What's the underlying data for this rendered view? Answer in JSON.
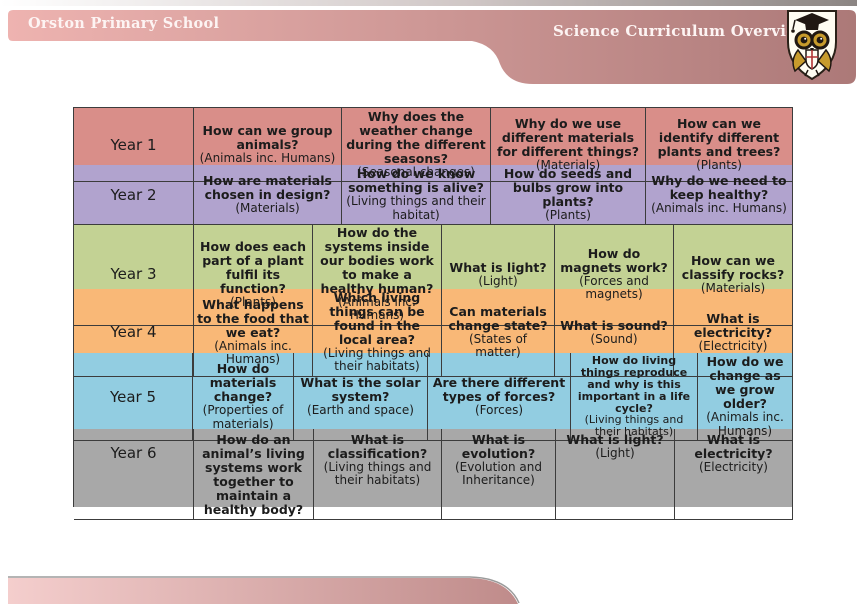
{
  "header": {
    "school_name": "Orston Primary School",
    "title": "Science Curriculum Overview",
    "logo": "owl-crest"
  },
  "banner": {
    "header_gradient_left": "#eeb3b0",
    "header_gradient_mid": "#cd9795",
    "header_gradient_right": "#ac7978",
    "footer_gradient_left": "#f4cecd",
    "footer_gradient_right": "#bf8b8a",
    "top_strip_right": "#8b8583",
    "table_border": "#3c3c3c"
  },
  "table": {
    "rows": [
      {
        "label": "Year 1",
        "color": "#d98e89",
        "cells": [
          {
            "q": "How can we group animals?",
            "sub": "(Animals inc. Humans)"
          },
          {
            "q": "Why does the weather change during the different seasons?",
            "sub": "(Seasonal changes)"
          },
          {
            "q": "Why do we use different materials for different things?",
            "sub": "(Materials)"
          },
          {
            "q": "How can we identify different plants and trees?",
            "sub": "(Plants)"
          }
        ]
      },
      {
        "label": "Year 2",
        "color": "#b1a3ce",
        "cells": [
          {
            "q": "How are materials chosen in design?",
            "sub": "(Materials)"
          },
          {
            "q": "How do we know something is alive?",
            "sub": "(Living things and their habitat)"
          },
          {
            "q": "How do seeds and bulbs grow into plants?",
            "sub": "(Plants)"
          },
          {
            "q": "Why do we need to keep healthy?",
            "sub": "(Animals inc. Humans)"
          }
        ]
      },
      {
        "label": "Year 3",
        "color": "#c3d294",
        "cells": [
          {
            "q": "How does each part of a plant fulfil its function?",
            "sub": "(Plants)"
          },
          {
            "q": "How do the systems inside our bodies work to make a healthy human?",
            "sub": "(Animals inc. Humans)"
          },
          {
            "q": "What is light?",
            "sub": "(Light)"
          },
          {
            "q": "How do magnets work?",
            "sub": "(Forces and magnets)"
          },
          {
            "q": "How can we classify rocks?",
            "sub": "(Materials)"
          }
        ]
      },
      {
        "label": "Year 4",
        "color": "#f9b877",
        "cells": [
          {
            "q": "What happens to the food that we eat?",
            "sub": "(Animals inc. Humans)"
          },
          {
            "q": "Which living things can be found in the local area?",
            "sub": "(Living things and their habitats)"
          },
          {
            "q": "Can materials change state?",
            "sub": "(States of matter)"
          },
          {
            "q": "What is sound?",
            "sub": "(Sound)"
          },
          {
            "q": "What is electricity?",
            "sub": "(Electricity)"
          }
        ]
      },
      {
        "label": "Year 5",
        "color": "#92cde1",
        "cells": [
          {
            "q": "How do materials change?",
            "sub": "(Properties of materials)"
          },
          {
            "q": "What is the solar system?",
            "sub": "(Earth and space)"
          },
          {
            "q": "Are there different types of forces?",
            "sub": "(Forces)"
          },
          {
            "q": "How do living things reproduce and why is this important in a life cycle?",
            "sub": "(Living things and their habitats)"
          },
          {
            "q": "How do we change as we grow older?",
            "sub": "(Animals inc. Humans)"
          }
        ]
      },
      {
        "label": "Year 6",
        "color": "#a8a8a8",
        "cells": [
          {
            "q": "How do an animal’s living systems work together to maintain a healthy body?",
            "sub": ""
          },
          {
            "q": "What is classification?",
            "sub": "(Living things and their habitats)"
          },
          {
            "q": "What is evolution?",
            "sub": "(Evolution and Inheritance)"
          },
          {
            "q": "What is light?",
            "sub": "(Light)"
          },
          {
            "q": "What is electricity?",
            "sub": "(Electricity)"
          }
        ]
      }
    ]
  }
}
